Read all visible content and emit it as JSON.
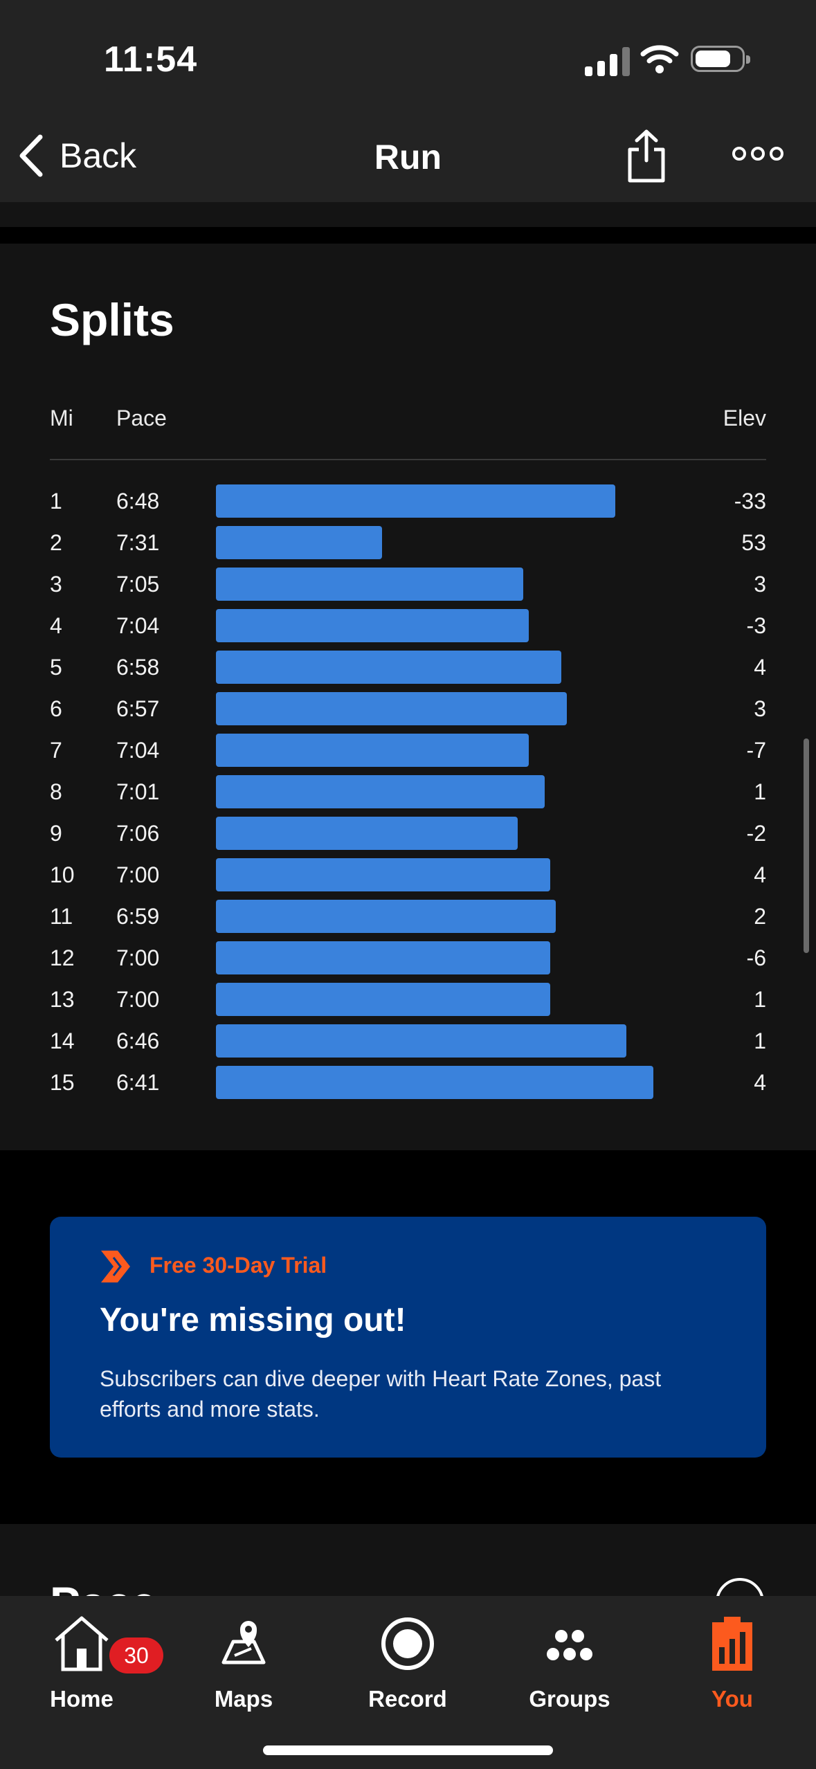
{
  "status_bar": {
    "time": "11:54"
  },
  "nav": {
    "back_label": "Back",
    "title": "Run"
  },
  "splits": {
    "title": "Splits",
    "columns": {
      "mi": "Mi",
      "pace": "Pace",
      "elev": "Elev"
    },
    "rows": [
      {
        "mi": "1",
        "pace": "6:48",
        "elev": "-33",
        "pace_seconds": 408
      },
      {
        "mi": "2",
        "pace": "7:31",
        "elev": "53",
        "pace_seconds": 451
      },
      {
        "mi": "3",
        "pace": "7:05",
        "elev": "3",
        "pace_seconds": 425
      },
      {
        "mi": "4",
        "pace": "7:04",
        "elev": "-3",
        "pace_seconds": 424
      },
      {
        "mi": "5",
        "pace": "6:58",
        "elev": "4",
        "pace_seconds": 418
      },
      {
        "mi": "6",
        "pace": "6:57",
        "elev": "3",
        "pace_seconds": 417
      },
      {
        "mi": "7",
        "pace": "7:04",
        "elev": "-7",
        "pace_seconds": 424
      },
      {
        "mi": "8",
        "pace": "7:01",
        "elev": "1",
        "pace_seconds": 421
      },
      {
        "mi": "9",
        "pace": "7:06",
        "elev": "-2",
        "pace_seconds": 426
      },
      {
        "mi": "10",
        "pace": "7:00",
        "elev": "4",
        "pace_seconds": 420
      },
      {
        "mi": "11",
        "pace": "6:59",
        "elev": "2",
        "pace_seconds": 419
      },
      {
        "mi": "12",
        "pace": "7:00",
        "elev": "-6",
        "pace_seconds": 420
      },
      {
        "mi": "13",
        "pace": "7:00",
        "elev": "1",
        "pace_seconds": 420
      },
      {
        "mi": "14",
        "pace": "6:46",
        "elev": "1",
        "pace_seconds": 406
      },
      {
        "mi": "15",
        "pace": "6:41",
        "elev": "4",
        "pace_seconds": 401
      }
    ],
    "bar_color": "#3a82dc"
  },
  "promo": {
    "trial_label": "Free 30-Day Trial",
    "title": "You're missing out!",
    "text": "Subscribers can dive deeper with Heart Rate Zones, past efforts and more stats.",
    "accent_color": "#fc5a1e",
    "background_color": "#003781"
  },
  "pace_section": {
    "title": "Pace"
  },
  "tabs": [
    {
      "label": "Home",
      "icon": "home-icon",
      "badge": "30"
    },
    {
      "label": "Maps",
      "icon": "map-pin-icon"
    },
    {
      "label": "Record",
      "icon": "record-icon"
    },
    {
      "label": "Groups",
      "icon": "groups-icon"
    },
    {
      "label": "You",
      "icon": "you-icon",
      "active": true
    }
  ],
  "active_tab_color": "#fc5a1e"
}
